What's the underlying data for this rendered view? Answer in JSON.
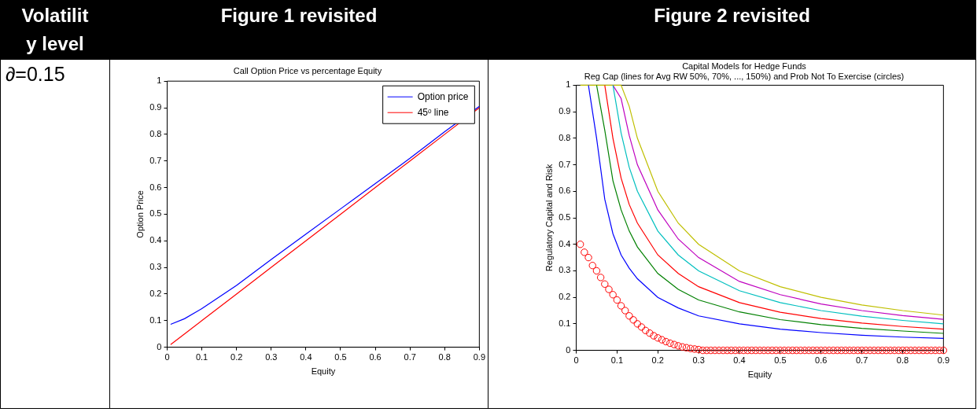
{
  "chart_data": [
    {
      "type": "other",
      "annotations": [
        "Volatility level",
        "∂=0.15"
      ]
    },
    {
      "type": "line",
      "title": "Call Option Price vs percentage Equity",
      "xlabel": "Equity",
      "ylabel": "Option Price",
      "annotations": [
        "Figure 1 revisited"
      ],
      "x": [
        0.01,
        0.05,
        0.1,
        0.2,
        0.3,
        0.4,
        0.5,
        0.6,
        0.7,
        0.8,
        0.9
      ],
      "series": [
        {
          "name": "Option price",
          "color": "#0000ff",
          "values": [
            0.086,
            0.107,
            0.145,
            0.232,
            0.33,
            0.425,
            0.52,
            0.615,
            0.71,
            0.81,
            0.905
          ]
        },
        {
          "name": "45ᵒ line",
          "color": "#ff0000",
          "values": [
            0.01,
            0.05,
            0.1,
            0.2,
            0.3,
            0.4,
            0.5,
            0.6,
            0.7,
            0.8,
            0.9
          ]
        }
      ],
      "xlim": [
        0,
        0.9
      ],
      "xticks": [
        0,
        0.1,
        0.2,
        0.3,
        0.4,
        0.5,
        0.6,
        0.7,
        0.8,
        0.9
      ],
      "ylim": [
        0,
        1
      ],
      "yticks": [
        0,
        0.1,
        0.2,
        0.3,
        0.4,
        0.5,
        0.6,
        0.7,
        0.8,
        0.9,
        1
      ],
      "grid": false,
      "legend": "top right"
    },
    {
      "type": "line",
      "title": "Capital Models for Hedge Funds",
      "subtitle": "Reg Cap (lines for Avg RW 50%, 70%, ..., 150%) and Prob Not To Exercise (circles)",
      "xlabel": "Equity",
      "ylabel": "Regulatory Capital and Risk",
      "annotations": [
        "Figure 2 revisited"
      ],
      "x": [
        0.01,
        0.03,
        0.05,
        0.07,
        0.09,
        0.11,
        0.13,
        0.15,
        0.2,
        0.25,
        0.3,
        0.4,
        0.5,
        0.6,
        0.7,
        0.8,
        0.9
      ],
      "series": [
        {
          "color": "#0000ff",
          "values": [
            null,
            1,
            0.8,
            0.57,
            0.44,
            0.36,
            0.31,
            0.27,
            0.2,
            0.16,
            0.13,
            0.1,
            0.08,
            0.067,
            0.057,
            0.05,
            0.045
          ]
        },
        {
          "color": "#008000",
          "values": [
            null,
            null,
            1,
            0.83,
            0.64,
            0.53,
            0.45,
            0.39,
            0.29,
            0.23,
            0.19,
            0.145,
            0.116,
            0.097,
            0.083,
            0.073,
            0.064
          ]
        },
        {
          "color": "#ff0000",
          "values": [
            null,
            null,
            null,
            1,
            0.8,
            0.65,
            0.55,
            0.48,
            0.36,
            0.29,
            0.24,
            0.18,
            0.144,
            0.12,
            0.103,
            0.09,
            0.08
          ]
        },
        {
          "color": "#00bfbf",
          "values": [
            null,
            null,
            null,
            null,
            1,
            0.82,
            0.69,
            0.6,
            0.45,
            0.36,
            0.3,
            0.225,
            0.18,
            0.15,
            0.129,
            0.113,
            0.1
          ]
        },
        {
          "color": "#bf00bf",
          "values": [
            null,
            null,
            null,
            null,
            1,
            0.95,
            0.81,
            0.7,
            0.53,
            0.42,
            0.35,
            0.26,
            0.21,
            0.175,
            0.15,
            0.131,
            0.117
          ]
        },
        {
          "color": "#bfbf00",
          "values": [
            1,
            1,
            1,
            1,
            1,
            1,
            0.92,
            0.8,
            0.6,
            0.48,
            0.4,
            0.3,
            0.24,
            0.2,
            0.171,
            0.15,
            0.133
          ]
        },
        {
          "type": "scatter",
          "marker": "circle",
          "color": "#ff0000",
          "x": [
            0.01,
            0.02,
            0.03,
            0.04,
            0.05,
            0.06,
            0.07,
            0.08,
            0.09,
            0.1,
            0.11,
            0.12,
            0.13,
            0.14,
            0.15,
            0.16,
            0.17,
            0.18,
            0.19,
            0.2,
            0.21,
            0.22,
            0.23,
            0.24,
            0.25,
            0.26,
            0.27,
            0.28,
            0.29,
            0.3,
            0.31,
            0.32,
            0.33,
            0.34,
            0.35,
            0.36,
            0.37,
            0.38,
            0.39,
            0.4,
            0.41,
            0.42,
            0.43,
            0.44,
            0.45,
            0.46,
            0.47,
            0.48,
            0.49,
            0.5,
            0.51,
            0.52,
            0.53,
            0.54,
            0.55,
            0.56,
            0.57,
            0.58,
            0.59,
            0.6,
            0.61,
            0.62,
            0.63,
            0.64,
            0.65,
            0.66,
            0.67,
            0.68,
            0.69,
            0.7,
            0.71,
            0.72,
            0.73,
            0.74,
            0.75,
            0.76,
            0.77,
            0.78,
            0.79,
            0.8,
            0.81,
            0.82,
            0.83,
            0.84,
            0.85,
            0.86,
            0.87,
            0.88,
            0.89,
            0.9
          ],
          "values": [
            0.4,
            0.37,
            0.35,
            0.32,
            0.3,
            0.275,
            0.25,
            0.23,
            0.21,
            0.19,
            0.168,
            0.15,
            0.13,
            0.115,
            0.1,
            0.088,
            0.075,
            0.065,
            0.055,
            0.047,
            0.04,
            0.033,
            0.027,
            0.022,
            0.017,
            0.013,
            0.01,
            0.007,
            0.005,
            0.003,
            0,
            0,
            0,
            0,
            0,
            0,
            0,
            0,
            0,
            0,
            0,
            0,
            0,
            0,
            0,
            0,
            0,
            0,
            0,
            0,
            0,
            0,
            0,
            0,
            0,
            0,
            0,
            0,
            0,
            0,
            0,
            0,
            0,
            0,
            0,
            0,
            0,
            0,
            0,
            0,
            0,
            0,
            0,
            0,
            0,
            0,
            0,
            0,
            0,
            0,
            0,
            0,
            0,
            0,
            0,
            0,
            0,
            0,
            0,
            0
          ]
        }
      ],
      "xlim": [
        0,
        0.9
      ],
      "xticks": [
        0,
        0.1,
        0.2,
        0.3,
        0.4,
        0.5,
        0.6,
        0.7,
        0.8,
        0.9
      ],
      "ylim": [
        0,
        1
      ],
      "yticks": [
        0,
        0.1,
        0.2,
        0.3,
        0.4,
        0.5,
        0.6,
        0.7,
        0.8,
        0.9,
        1
      ],
      "grid": false
    }
  ]
}
